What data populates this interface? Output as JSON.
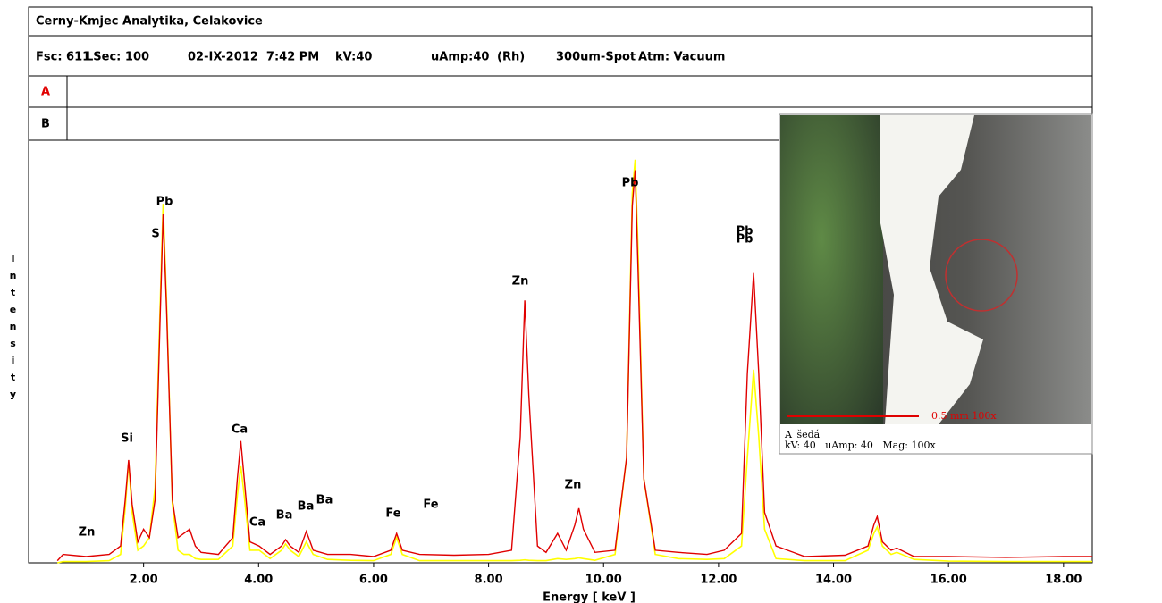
{
  "header": {
    "title": "Cerny-Kmjec Analytika, Celakovice",
    "fields": [
      "Fsc: 611",
      "LSec: 100",
      "02-IX-2012  7:42 PM",
      "kV:40",
      "uAmp:40",
      "(Rh)",
      "300um-Spot",
      "Atm: Vacuum"
    ],
    "rows": [
      "A",
      "B"
    ]
  },
  "image": {
    "scale": "0.5 mm 100x",
    "name": "A_šedá",
    "settings": "kV: 40   uAmp: 40   Mag: 100x"
  },
  "chart_data": {
    "type": "line",
    "x_label": "Energy [ keV ]",
    "y_label": "Intensity",
    "xlim": [
      0,
      18.5
    ],
    "ylim": [
      0,
      100
    ],
    "xticks": [
      {
        "value": 2,
        "label": "2.00"
      },
      {
        "value": 4,
        "label": "4.00"
      },
      {
        "value": 6,
        "label": "6.00"
      },
      {
        "value": 8,
        "label": "8.00"
      },
      {
        "value": 10,
        "label": "10.00"
      },
      {
        "value": 12,
        "label": "12.00"
      },
      {
        "value": 14,
        "label": "14.00"
      },
      {
        "value": 16,
        "label": "16.00"
      },
      {
        "value": 18,
        "label": "18.00"
      }
    ],
    "x": [
      0.5,
      0.6,
      1.0,
      1.4,
      1.6,
      1.68,
      1.74,
      1.8,
      1.9,
      2.0,
      2.1,
      2.2,
      2.28,
      2.34,
      2.4,
      2.5,
      2.6,
      2.7,
      2.8,
      2.9,
      3.0,
      3.3,
      3.55,
      3.63,
      3.69,
      3.75,
      3.85,
      4.01,
      4.2,
      4.4,
      4.47,
      4.55,
      4.7,
      4.83,
      4.95,
      5.2,
      5.6,
      6.0,
      6.3,
      6.4,
      6.5,
      6.8,
      7.4,
      8.0,
      8.4,
      8.55,
      8.63,
      8.7,
      8.85,
      9.0,
      9.2,
      9.35,
      9.5,
      9.57,
      9.65,
      9.85,
      10.2,
      10.4,
      10.5,
      10.55,
      10.6,
      10.7,
      10.9,
      11.3,
      11.8,
      12.1,
      12.4,
      12.5,
      12.61,
      12.7,
      12.8,
      13.0,
      13.5,
      14.2,
      14.6,
      14.7,
      14.76,
      14.85,
      15.0,
      15.1,
      15.4,
      16.0,
      17.0,
      18.0,
      18.5
    ],
    "series": [
      {
        "color": "#e00000",
        "values": [
          0.5,
          2,
          1.5,
          2,
          4,
          15,
          24.5,
          14,
          5,
          8,
          6,
          15,
          55,
          83,
          60,
          15,
          6,
          7,
          8,
          4,
          2.5,
          2,
          6,
          20,
          29,
          20,
          5,
          4,
          2,
          4,
          5.5,
          4,
          2.5,
          7.5,
          3,
          2,
          2,
          1.5,
          3,
          7,
          3,
          2,
          1.8,
          2,
          3,
          30,
          62.5,
          40,
          4,
          2.5,
          7,
          3,
          9,
          13,
          8,
          2.5,
          3,
          25,
          85,
          93.5,
          70,
          20,
          3,
          2.5,
          2,
          3,
          7,
          45,
          69,
          45,
          12,
          4,
          1.5,
          1.8,
          4,
          9,
          11,
          5,
          3,
          3.5,
          1.5,
          1.5,
          1.3,
          1.5,
          1.5
        ]
      },
      {
        "color": "#ffff00",
        "values": [
          0,
          0.3,
          0.3,
          0.5,
          2,
          13,
          24,
          12,
          3,
          4,
          6,
          18,
          58,
          85.5,
          62,
          14,
          3,
          2,
          2,
          1,
          0.8,
          0.8,
          4,
          16,
          23,
          16,
          3,
          3,
          1,
          3,
          4.5,
          3,
          1.5,
          5,
          2,
          0.8,
          0.6,
          0.5,
          2,
          6,
          2,
          0.5,
          0.5,
          0.5,
          0.5,
          0.6,
          0.7,
          0.6,
          0.5,
          0.5,
          1,
          0.8,
          1,
          1.2,
          1,
          0.6,
          2,
          25,
          88,
          96,
          75,
          20,
          2,
          1,
          0.8,
          1,
          4,
          25,
          46,
          30,
          8,
          1,
          0.5,
          0.5,
          3,
          7,
          8.5,
          4,
          2,
          2.5,
          0.8,
          0.4,
          0.3,
          0.3,
          0.3
        ]
      }
    ],
    "annotations": [
      "Zn",
      "Si",
      "Pb",
      "S",
      "Ca",
      "Ca",
      "Ba",
      "Ba",
      "Ba",
      "Fe",
      "Fe",
      "Zn",
      "Zn",
      "Pb",
      "Pb",
      "Pb"
    ]
  }
}
